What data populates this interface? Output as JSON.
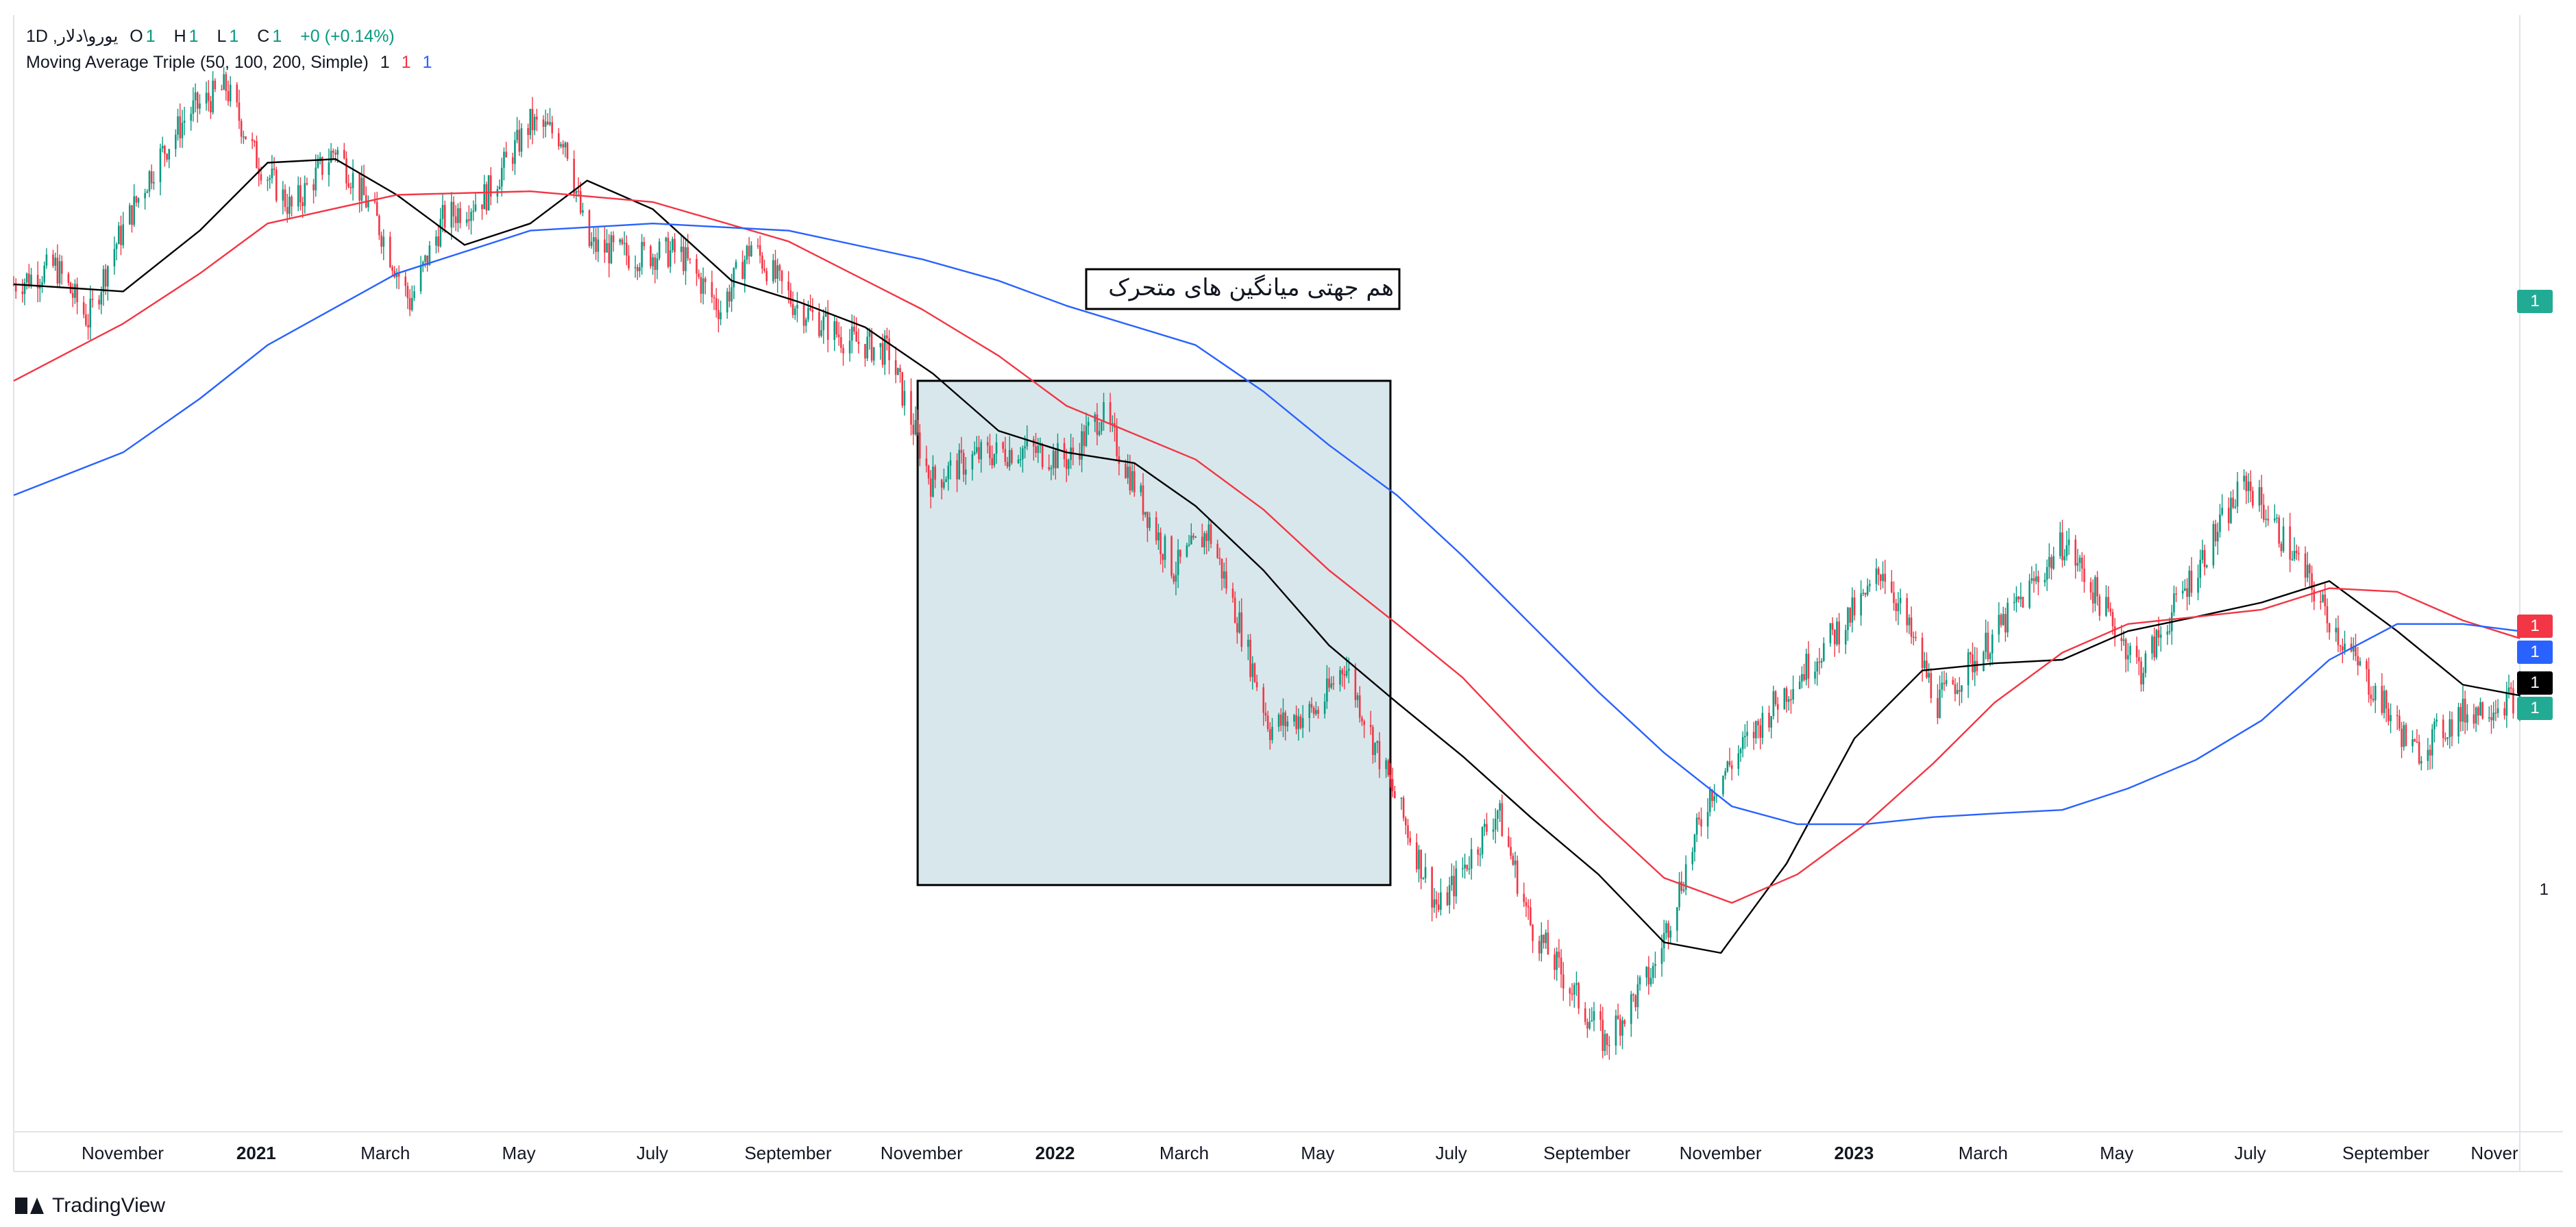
{
  "header": {
    "symbol": "یورو\\دلار, 1D",
    "ohlc": [
      {
        "key": "O",
        "value": "1"
      },
      {
        "key": "H",
        "value": "1"
      },
      {
        "key": "L",
        "value": "1"
      },
      {
        "key": "C",
        "value": "1"
      }
    ],
    "change": "+0 (+0.14%)",
    "indicator": "Moving Average Triple (50, 100, 200, Simple)",
    "indicator_values": [
      "1",
      "1",
      "1"
    ]
  },
  "annotation": {
    "text": "هم جهتی میانگین های متحرک"
  },
  "price_axis": {
    "tags": [
      {
        "label": "1",
        "color": "#22ab94"
      },
      {
        "label": "1",
        "color": "#f23645"
      },
      {
        "label": "1",
        "color": "#2962ff"
      },
      {
        "label": "1",
        "color": "#000000"
      },
      {
        "label": "1",
        "color": "#22ab94"
      }
    ],
    "plain_label": "1"
  },
  "footer": {
    "brand": "TradingView"
  },
  "chart_data": {
    "type": "candlestick",
    "xlabel": "",
    "ylabel": "",
    "x_tick_labels": [
      {
        "label": "November",
        "bold": false
      },
      {
        "label": "2021",
        "bold": true
      },
      {
        "label": "March",
        "bold": false
      },
      {
        "label": "May",
        "bold": false
      },
      {
        "label": "July",
        "bold": false
      },
      {
        "label": "September",
        "bold": false
      },
      {
        "label": "November",
        "bold": false
      },
      {
        "label": "2022",
        "bold": true
      },
      {
        "label": "March",
        "bold": false
      },
      {
        "label": "May",
        "bold": false
      },
      {
        "label": "July",
        "bold": false
      },
      {
        "label": "September",
        "bold": false
      },
      {
        "label": "November",
        "bold": false
      },
      {
        "label": "2023",
        "bold": true
      },
      {
        "label": "March",
        "bold": false
      },
      {
        "label": "May",
        "bold": false
      },
      {
        "label": "July",
        "bold": false
      },
      {
        "label": "September",
        "bold": false
      },
      {
        "label": "Nover",
        "bold": false
      }
    ],
    "x_tick_dates": [
      "2020-11-01",
      "2021-01-01",
      "2021-03-01",
      "2021-05-01",
      "2021-07-01",
      "2021-09-01",
      "2021-11-01",
      "2022-01-01",
      "2022-03-01",
      "2022-05-01",
      "2022-07-01",
      "2022-09-01",
      "2022-11-01",
      "2023-01-01",
      "2023-03-01",
      "2023-05-01",
      "2023-07-01",
      "2023-09-01",
      "2023-11-01"
    ],
    "x_range": [
      "2020-10-01",
      "2023-11-20"
    ],
    "y_range": [
      0.94,
      1.245
    ],
    "colors": {
      "up": "#089981",
      "down": "#f23645"
    },
    "close_path": [
      [
        "2020-10-01",
        1.177
      ],
      [
        "2020-10-20",
        1.182
      ],
      [
        "2020-11-04",
        1.167
      ],
      [
        "2020-11-15",
        1.186
      ],
      [
        "2020-12-04",
        1.21
      ],
      [
        "2020-12-20",
        1.225
      ],
      [
        "2021-01-06",
        1.232
      ],
      [
        "2021-01-20",
        1.212
      ],
      [
        "2021-02-05",
        1.198
      ],
      [
        "2021-02-25",
        1.215
      ],
      [
        "2021-03-15",
        1.196
      ],
      [
        "2021-03-31",
        1.172
      ],
      [
        "2021-04-15",
        1.195
      ],
      [
        "2021-05-05",
        1.202
      ],
      [
        "2021-05-25",
        1.222
      ],
      [
        "2021-06-10",
        1.218
      ],
      [
        "2021-06-20",
        1.188
      ],
      [
        "2021-07-10",
        1.185
      ],
      [
        "2021-08-01",
        1.186
      ],
      [
        "2021-08-20",
        1.17
      ],
      [
        "2021-09-03",
        1.188
      ],
      [
        "2021-09-22",
        1.172
      ],
      [
        "2021-10-15",
        1.162
      ],
      [
        "2021-11-05",
        1.158
      ],
      [
        "2021-11-24",
        1.122
      ],
      [
        "2021-12-15",
        1.129
      ],
      [
        "2022-01-05",
        1.131
      ],
      [
        "2022-01-26",
        1.128
      ],
      [
        "2022-02-10",
        1.141
      ],
      [
        "2022-02-28",
        1.117
      ],
      [
        "2022-03-15",
        1.097
      ],
      [
        "2022-03-31",
        1.108
      ],
      [
        "2022-04-14",
        1.082
      ],
      [
        "2022-04-28",
        1.053
      ],
      [
        "2022-05-20",
        1.058
      ],
      [
        "2022-06-01",
        1.071
      ],
      [
        "2022-06-15",
        1.048
      ],
      [
        "2022-07-14",
        1.002
      ],
      [
        "2022-08-10",
        1.03
      ],
      [
        "2022-08-25",
        0.998
      ],
      [
        "2022-09-28",
        0.965
      ],
      [
        "2022-10-20",
        0.985
      ],
      [
        "2022-11-15",
        1.035
      ],
      [
        "2022-12-15",
        1.06
      ],
      [
        "2023-01-26",
        1.09
      ],
      [
        "2023-02-02",
        1.098
      ],
      [
        "2023-02-27",
        1.06
      ],
      [
        "2023-03-24",
        1.078
      ],
      [
        "2023-04-26",
        1.105
      ],
      [
        "2023-05-31",
        1.069
      ],
      [
        "2023-06-20",
        1.092
      ],
      [
        "2023-07-18",
        1.122
      ],
      [
        "2023-08-10",
        1.1
      ],
      [
        "2023-09-01",
        1.076
      ],
      [
        "2023-10-03",
        1.046
      ],
      [
        "2023-10-25",
        1.057
      ],
      [
        "2023-11-20",
        1.062
      ]
    ],
    "series": [
      {
        "name": "MA 50",
        "color": "#000000",
        "points": [
          [
            "2020-10-01",
            1.177
          ],
          [
            "2020-11-20",
            1.175
          ],
          [
            "2020-12-25",
            1.192
          ],
          [
            "2021-01-25",
            1.211
          ],
          [
            "2021-02-25",
            1.212
          ],
          [
            "2021-03-25",
            1.202
          ],
          [
            "2021-04-25",
            1.188
          ],
          [
            "2021-05-25",
            1.194
          ],
          [
            "2021-06-20",
            1.206
          ],
          [
            "2021-07-20",
            1.198
          ],
          [
            "2021-08-25",
            1.178
          ],
          [
            "2021-09-25",
            1.172
          ],
          [
            "2021-10-25",
            1.165
          ],
          [
            "2021-11-25",
            1.152
          ],
          [
            "2021-12-25",
            1.136
          ],
          [
            "2022-01-25",
            1.13
          ],
          [
            "2022-02-25",
            1.127
          ],
          [
            "2022-03-25",
            1.115
          ],
          [
            "2022-04-25",
            1.097
          ],
          [
            "2022-05-25",
            1.076
          ],
          [
            "2022-06-25",
            1.06
          ],
          [
            "2022-07-25",
            1.045
          ],
          [
            "2022-08-25",
            1.028
          ],
          [
            "2022-09-25",
            1.012
          ],
          [
            "2022-10-25",
            0.993
          ],
          [
            "2022-11-20",
            0.99
          ],
          [
            "2022-12-20",
            1.015
          ],
          [
            "2023-01-20",
            1.05
          ],
          [
            "2023-02-20",
            1.069
          ],
          [
            "2023-03-25",
            1.071
          ],
          [
            "2023-04-25",
            1.072
          ],
          [
            "2023-05-25",
            1.08
          ],
          [
            "2023-06-25",
            1.084
          ],
          [
            "2023-07-25",
            1.088
          ],
          [
            "2023-08-25",
            1.094
          ],
          [
            "2023-09-25",
            1.08
          ],
          [
            "2023-10-25",
            1.065
          ],
          [
            "2023-11-20",
            1.062
          ]
        ]
      },
      {
        "name": "MA 100",
        "color": "#f23645",
        "points": [
          [
            "2020-10-01",
            1.15
          ],
          [
            "2020-11-20",
            1.166
          ],
          [
            "2020-12-25",
            1.18
          ],
          [
            "2021-01-25",
            1.194
          ],
          [
            "2021-03-25",
            1.202
          ],
          [
            "2021-05-25",
            1.203
          ],
          [
            "2021-07-20",
            1.2
          ],
          [
            "2021-09-20",
            1.189
          ],
          [
            "2021-11-20",
            1.17
          ],
          [
            "2021-12-25",
            1.157
          ],
          [
            "2022-01-25",
            1.143
          ],
          [
            "2022-03-25",
            1.128
          ],
          [
            "2022-04-25",
            1.114
          ],
          [
            "2022-05-25",
            1.097
          ],
          [
            "2022-06-25",
            1.082
          ],
          [
            "2022-07-25",
            1.067
          ],
          [
            "2022-08-25",
            1.047
          ],
          [
            "2022-09-25",
            1.028
          ],
          [
            "2022-10-25",
            1.011
          ],
          [
            "2022-11-25",
            1.004
          ],
          [
            "2022-12-25",
            1.012
          ],
          [
            "2023-01-25",
            1.026
          ],
          [
            "2023-02-25",
            1.043
          ],
          [
            "2023-03-25",
            1.06
          ],
          [
            "2023-04-25",
            1.074
          ],
          [
            "2023-05-25",
            1.082
          ],
          [
            "2023-06-25",
            1.084
          ],
          [
            "2023-07-25",
            1.086
          ],
          [
            "2023-08-25",
            1.092
          ],
          [
            "2023-09-25",
            1.091
          ],
          [
            "2023-10-25",
            1.083
          ],
          [
            "2023-11-20",
            1.078
          ]
        ]
      },
      {
        "name": "MA 200",
        "color": "#2962ff",
        "points": [
          [
            "2020-10-01",
            1.118
          ],
          [
            "2020-11-20",
            1.13
          ],
          [
            "2020-12-25",
            1.145
          ],
          [
            "2021-01-25",
            1.16
          ],
          [
            "2021-03-25",
            1.18
          ],
          [
            "2021-05-25",
            1.192
          ],
          [
            "2021-07-20",
            1.194
          ],
          [
            "2021-09-20",
            1.192
          ],
          [
            "2021-11-20",
            1.184
          ],
          [
            "2021-12-25",
            1.178
          ],
          [
            "2022-01-25",
            1.171
          ],
          [
            "2022-03-25",
            1.16
          ],
          [
            "2022-04-25",
            1.147
          ],
          [
            "2022-05-25",
            1.132
          ],
          [
            "2022-06-25",
            1.118
          ],
          [
            "2022-07-25",
            1.101
          ],
          [
            "2022-08-25",
            1.082
          ],
          [
            "2022-09-25",
            1.063
          ],
          [
            "2022-10-25",
            1.046
          ],
          [
            "2022-11-25",
            1.031
          ],
          [
            "2022-12-25",
            1.026
          ],
          [
            "2023-01-25",
            1.026
          ],
          [
            "2023-02-25",
            1.028
          ],
          [
            "2023-03-25",
            1.029
          ],
          [
            "2023-04-25",
            1.03
          ],
          [
            "2023-05-25",
            1.036
          ],
          [
            "2023-06-25",
            1.044
          ],
          [
            "2023-07-25",
            1.055
          ],
          [
            "2023-08-25",
            1.072
          ],
          [
            "2023-09-25",
            1.082
          ],
          [
            "2023-10-25",
            1.082
          ],
          [
            "2023-11-20",
            1.08
          ]
        ]
      }
    ],
    "highlight_box": {
      "from": "2021-11-18",
      "to": "2022-06-22",
      "y_top": 1.15,
      "y_bottom": 1.009,
      "fill": "#d8e7eb",
      "border": "#000000"
    }
  }
}
